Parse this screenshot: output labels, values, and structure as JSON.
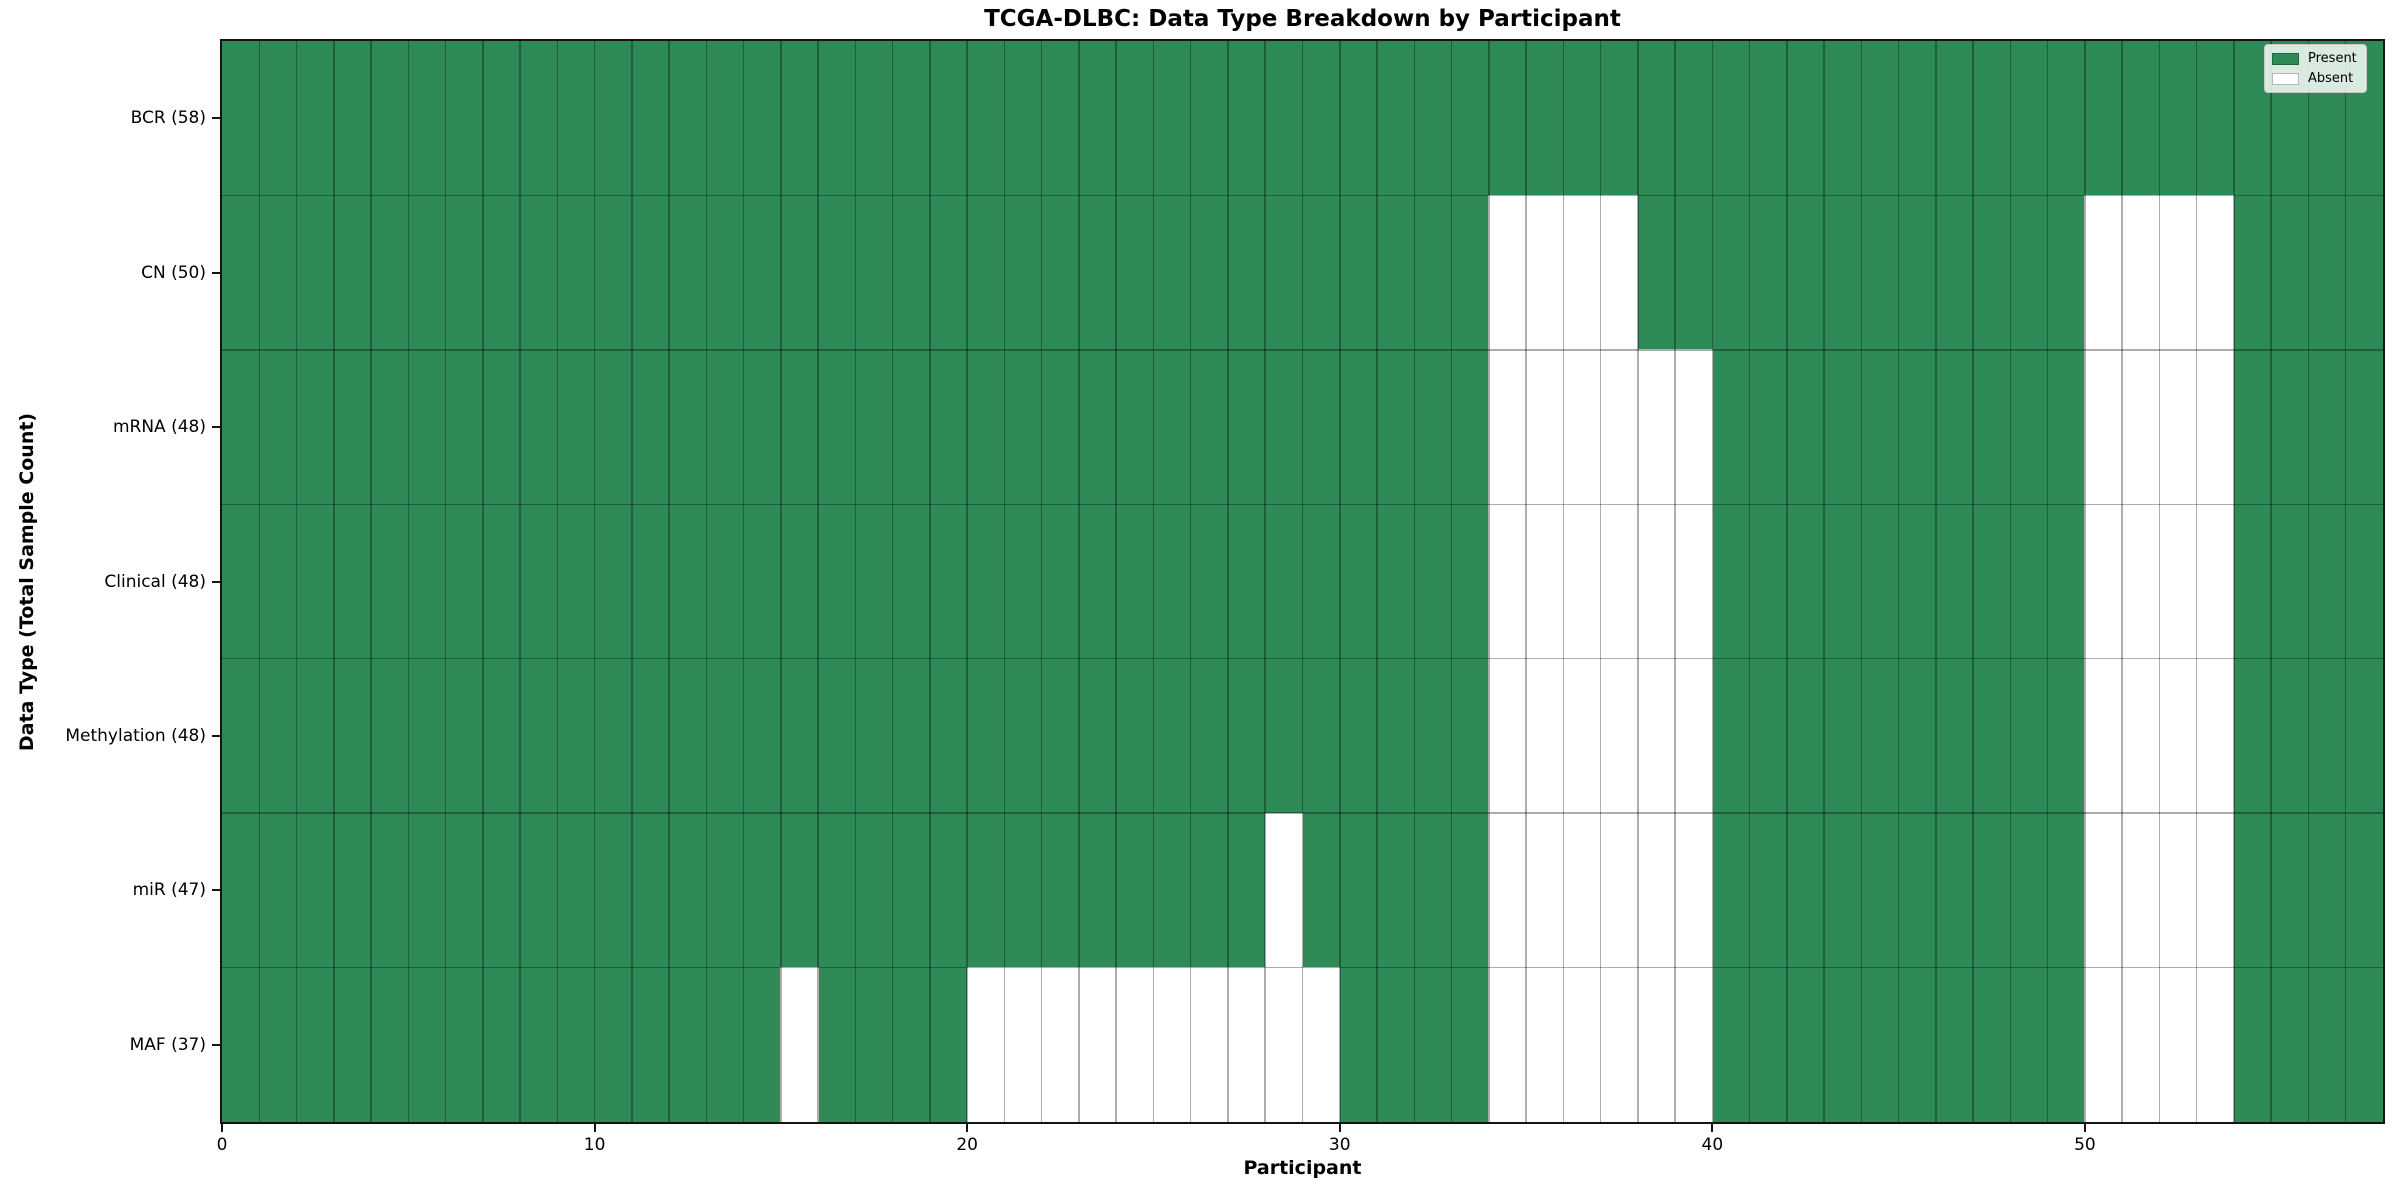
{
  "figure": {
    "background": "#ffffff"
  },
  "chart_data": {
    "type": "heatmap",
    "title": "TCGA-DLBC: Data Type Breakdown by Participant",
    "xlabel": "Participant",
    "ylabel": "Data Type (Total Sample Count)",
    "n_participants": 58,
    "x_axis_range": [
      0,
      58
    ],
    "x_ticks": [
      0,
      10,
      20,
      30,
      40,
      50
    ],
    "grid": true,
    "legend_position": "upper right",
    "colors": {
      "present": "#2e8b57",
      "absent": "#ffffff",
      "grid_line": "rgba(0,0,0,0.32)",
      "spine": "#141414"
    },
    "legend_items": [
      {
        "label": "Present",
        "color": "#2e8b57"
      },
      {
        "label": "Absent",
        "color": "#ffffff"
      }
    ],
    "rows": [
      {
        "label": "BCR (58)",
        "data_type": "BCR",
        "total": 58,
        "absent_participants": []
      },
      {
        "label": "CN (50)",
        "data_type": "CN",
        "total": 50,
        "absent_participants": [
          34,
          35,
          36,
          37,
          50,
          51,
          52,
          53
        ]
      },
      {
        "label": "mRNA (48)",
        "data_type": "mRNA",
        "total": 48,
        "absent_participants": [
          34,
          35,
          36,
          37,
          38,
          39,
          50,
          51,
          52,
          53
        ]
      },
      {
        "label": "Clinical (48)",
        "data_type": "Clinical",
        "total": 48,
        "absent_participants": [
          34,
          35,
          36,
          37,
          38,
          39,
          50,
          51,
          52,
          53
        ]
      },
      {
        "label": "Methylation (48)",
        "data_type": "Methylation",
        "total": 48,
        "absent_participants": [
          34,
          35,
          36,
          37,
          38,
          39,
          50,
          51,
          52,
          53
        ]
      },
      {
        "label": "miR (47)",
        "data_type": "miR",
        "total": 47,
        "absent_participants": [
          28,
          34,
          35,
          36,
          37,
          38,
          39,
          50,
          51,
          52,
          53
        ]
      },
      {
        "label": "MAF (37)",
        "data_type": "MAF",
        "total": 37,
        "absent_participants": [
          15,
          20,
          21,
          22,
          23,
          24,
          25,
          26,
          27,
          28,
          29,
          34,
          35,
          36,
          37,
          38,
          39,
          50,
          51,
          52,
          53
        ]
      }
    ]
  }
}
